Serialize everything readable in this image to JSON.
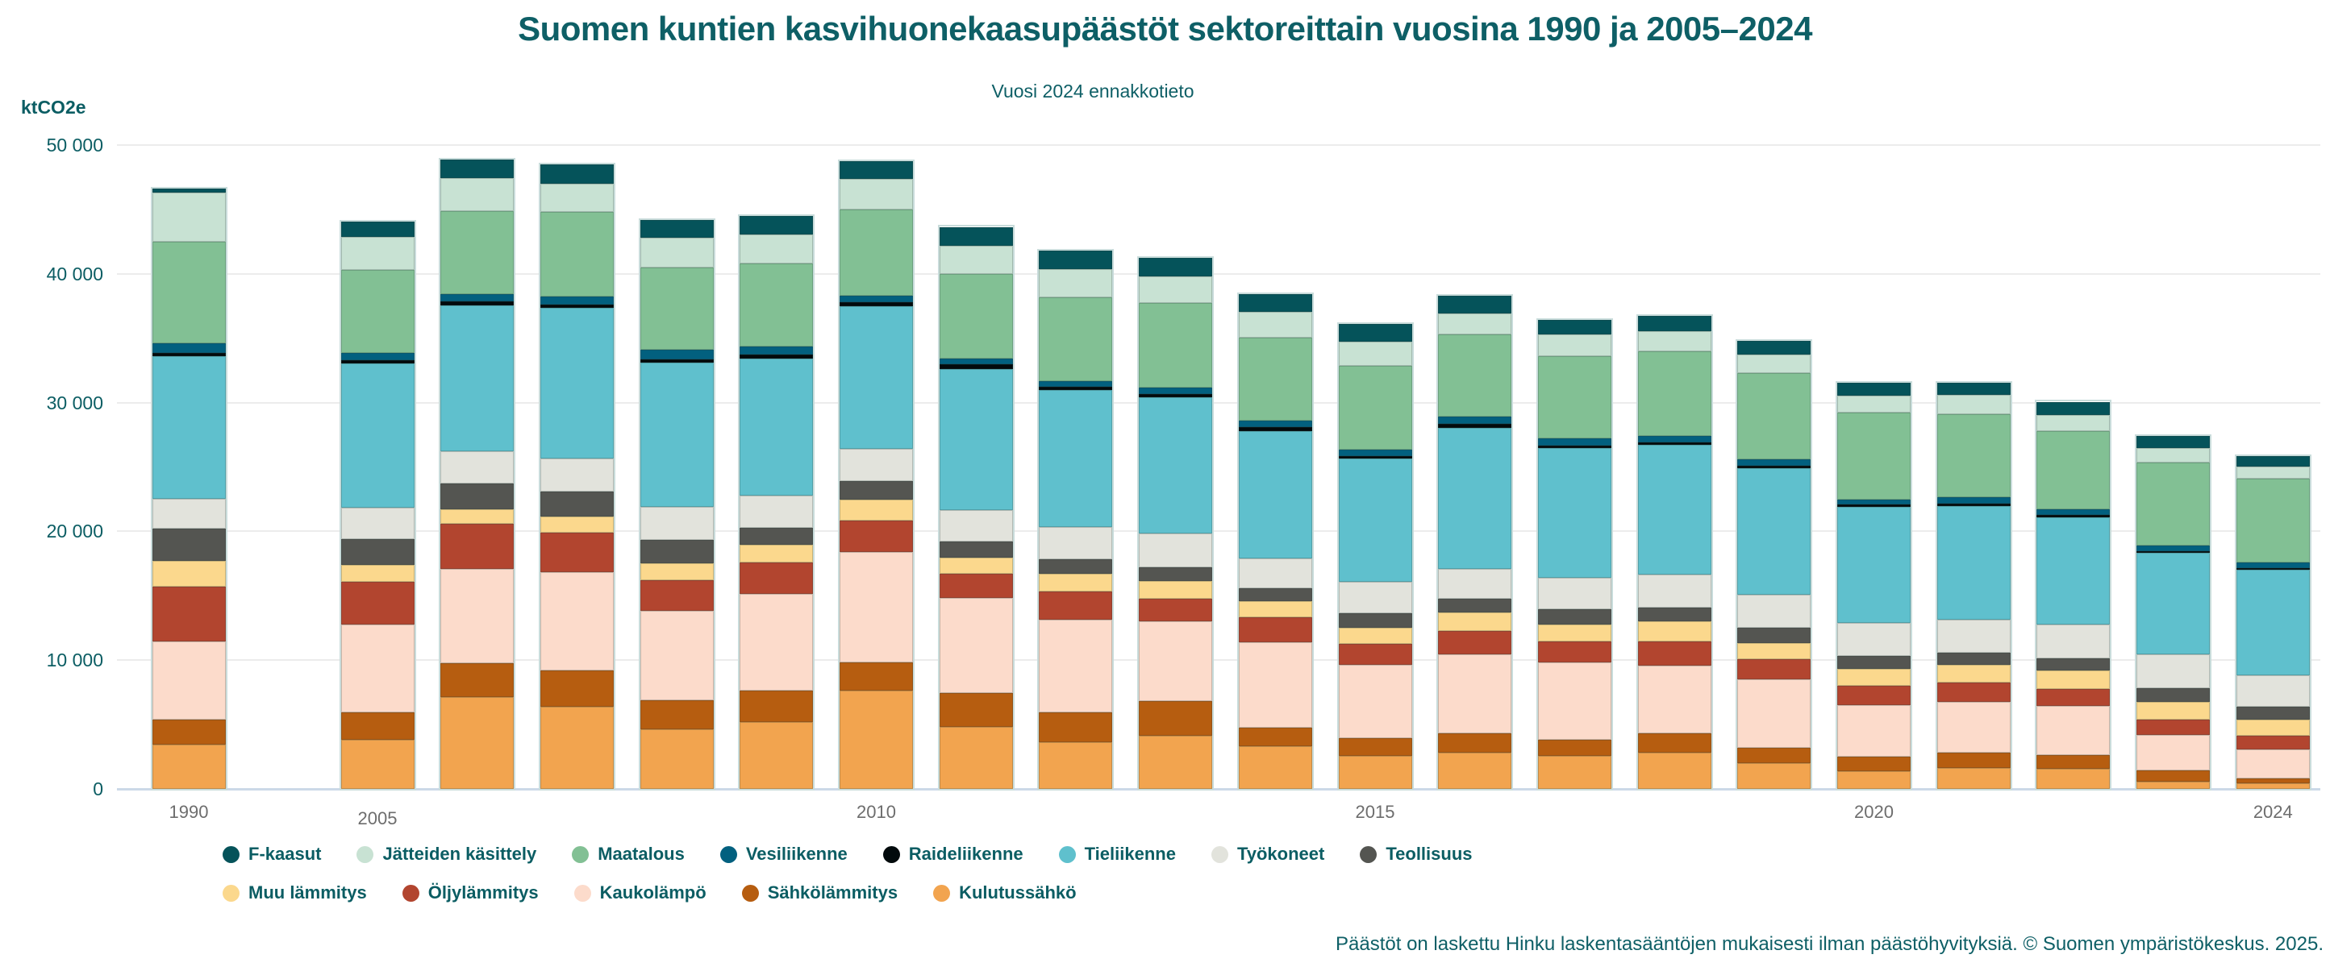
{
  "title": "Suomen kuntien kasvihuonekaasupäästöt sektoreittain vuosina 1990 ja 2005–2024",
  "subtitle": "Vuosi 2024 ennakkotieto",
  "footer": "Päästöt on laskettu Hinku laskentasääntöjen mukaisesti ilman päästöhyvityksiä. © Suomen ympäristökeskus. 2025.",
  "y_axis": {
    "unit_label": "ktCO2e",
    "ticks": [
      "0",
      "10 000",
      "20 000",
      "30 000",
      "40 000",
      "50 000"
    ],
    "tick_step": 10000
  },
  "x_axis": {
    "tick_labels": [
      "1990",
      "2005",
      "2010",
      "2015",
      "2020",
      "2024"
    ]
  },
  "chart_data": {
    "type": "bar",
    "stacked": true,
    "unit": "ktCO2e",
    "title": "Suomen kuntien kasvihuonekaasupäästöt sektoreittain vuosina 1990 ja 2005–2024",
    "ylim": [
      0,
      50000
    ],
    "grid": true,
    "legend_position": "bottom",
    "categories": [
      "1990",
      "2005",
      "2006",
      "2007",
      "2008",
      "2009",
      "2010",
      "2011",
      "2012",
      "2013",
      "2014",
      "2015",
      "2016",
      "2017",
      "2018",
      "2019",
      "2020",
      "2021",
      "2022",
      "2023",
      "2024"
    ],
    "series": [
      {
        "name": "Kulutussähkö",
        "color": "#f2a44f",
        "values": [
          3450,
          3800,
          7120,
          6360,
          4630,
          5190,
          7620,
          4800,
          3630,
          4120,
          3290,
          2540,
          2800,
          2540,
          2800,
          1980,
          1400,
          1640,
          1550,
          540,
          410
        ]
      },
      {
        "name": "Sähkölämmitys",
        "color": "#b65d10",
        "values": [
          1950,
          2140,
          2660,
          2850,
          2230,
          2430,
          2220,
          2650,
          2330,
          2700,
          1490,
          1430,
          1500,
          1260,
          1490,
          1230,
          1100,
          1160,
          1090,
          930,
          400
        ]
      },
      {
        "name": "Kaukolämpö",
        "color": "#fcdbcb",
        "values": [
          6050,
          6820,
          7300,
          7640,
          7000,
          7530,
          8570,
          7400,
          7200,
          6200,
          6640,
          5640,
          6140,
          6040,
          5310,
          5310,
          4000,
          3990,
          3820,
          2720,
          2260
        ]
      },
      {
        "name": "Öljylämmitys",
        "color": "#b2452f",
        "values": [
          4250,
          3320,
          3490,
          3050,
          2330,
          2430,
          2430,
          1830,
          2190,
          1720,
          1920,
          1660,
          1830,
          1600,
          1830,
          1530,
          1490,
          1490,
          1320,
          1190,
          1060
        ]
      },
      {
        "name": "Muu lämmitys",
        "color": "#fbd88d",
        "values": [
          2000,
          1330,
          1160,
          1230,
          1330,
          1390,
          1620,
          1300,
          1330,
          1430,
          1230,
          1230,
          1430,
          1330,
          1560,
          1290,
          1330,
          1330,
          1400,
          1400,
          1260
        ]
      },
      {
        "name": "Teollisuus",
        "color": "#545551",
        "values": [
          2500,
          1985,
          1990,
          1990,
          1825,
          1330,
          1430,
          1260,
          1130,
          1060,
          1000,
          1160,
          1060,
          1160,
          1100,
          1160,
          990,
          990,
          990,
          1060,
          1000
        ]
      },
      {
        "name": "Työkoneet",
        "color": "#e2e3dc",
        "values": [
          2300,
          2440,
          2500,
          2530,
          2560,
          2500,
          2490,
          2390,
          2520,
          2590,
          2330,
          2420,
          2330,
          2490,
          2590,
          2590,
          2560,
          2560,
          2600,
          2590,
          2460
        ]
      },
      {
        "name": "Tieliikenne",
        "color": "#5fc0cd",
        "values": [
          11100,
          11220,
          11350,
          11690,
          11200,
          10650,
          11120,
          10960,
          10620,
          10570,
          9860,
          9570,
          10960,
          10030,
          10030,
          9790,
          9030,
          8800,
          8300,
          7910,
          8170
        ]
      },
      {
        "name": "Raideliikenne",
        "color": "#020a0c",
        "values": [
          250,
          260,
          300,
          270,
          270,
          300,
          330,
          370,
          300,
          300,
          330,
          230,
          270,
          200,
          230,
          250,
          200,
          200,
          200,
          150,
          150
        ]
      },
      {
        "name": "Vesiliikenne",
        "color": "#02607f",
        "values": [
          750,
          530,
          540,
          600,
          725,
          600,
          450,
          460,
          430,
          490,
          500,
          500,
          570,
          570,
          500,
          490,
          400,
          500,
          430,
          430,
          430
        ]
      },
      {
        "name": "Maatalous",
        "color": "#82c094",
        "values": [
          7900,
          6470,
          6470,
          6580,
          6400,
          6470,
          6740,
          6580,
          6480,
          6570,
          6480,
          6480,
          6410,
          6400,
          6570,
          6650,
          6740,
          6470,
          6110,
          6410,
          6480
        ]
      },
      {
        "name": "Jätteiden käsittely",
        "color": "#c8e2d3",
        "values": [
          3800,
          2560,
          2550,
          2230,
          2330,
          2230,
          2330,
          2160,
          2230,
          2060,
          2000,
          1890,
          1630,
          1660,
          1570,
          1490,
          1330,
          1500,
          1260,
          1130,
          930
        ]
      },
      {
        "name": "F-kaasut",
        "color": "#05535a",
        "values": [
          330,
          1200,
          1430,
          1500,
          1340,
          1420,
          1390,
          1490,
          1430,
          1430,
          1330,
          1360,
          1360,
          1130,
          1160,
          1060,
          990,
          920,
          1000,
          930,
          840
        ]
      }
    ],
    "legend_rows": [
      [
        "F-kaasut",
        "Jätteiden käsittely",
        "Maatalous",
        "Vesiliikenne",
        "Raideliikenne",
        "Tieliikenne",
        "Työkoneet",
        "Teollisuus"
      ],
      [
        "Muu lämmitys",
        "Öljylämmitys",
        "Kaukolämpö",
        "Sähkölämmitys",
        "Kulutussähkö"
      ]
    ]
  }
}
